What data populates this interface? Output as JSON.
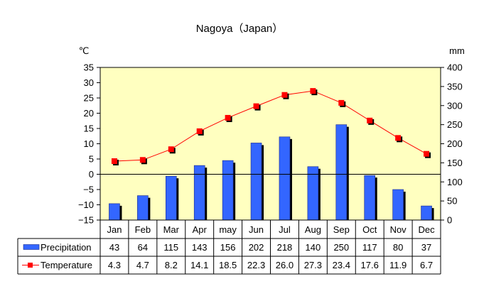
{
  "chart_data": {
    "type": "bar+line",
    "title": "Nagoya（Japan）",
    "categories": [
      "Jan",
      "Feb",
      "Mar",
      "Apr",
      "may",
      "Jun",
      "Jul",
      "Aug",
      "Sep",
      "Oct",
      "Nov",
      "Dec"
    ],
    "left_axis": {
      "unit": "℃",
      "ticks": [
        "35",
        "30",
        "25",
        "20",
        "15",
        "10",
        "5",
        "0",
        "−5",
        "−10",
        "−15"
      ],
      "ylim": [
        -15,
        35
      ]
    },
    "right_axis": {
      "unit": "mm",
      "ticks": [
        "400",
        "350",
        "300",
        "250",
        "200",
        "150",
        "100",
        "50",
        "0"
      ],
      "ylim": [
        0,
        400
      ]
    },
    "grid": false,
    "plot_background": "#ffffc0",
    "series": [
      {
        "name": "Precipitation",
        "kind": "bar",
        "axis": "right",
        "color": "#3366ff",
        "values": [
          43,
          64,
          115,
          143,
          156,
          202,
          218,
          140,
          250,
          117,
          80,
          37
        ],
        "labels": [
          "43",
          "64",
          "115",
          "143",
          "156",
          "202",
          "218",
          "140",
          "250",
          "117",
          "80",
          "37"
        ]
      },
      {
        "name": "Temperature",
        "kind": "line",
        "axis": "left",
        "color": "#ff0000",
        "values": [
          4.3,
          4.7,
          8.2,
          14.1,
          18.5,
          22.3,
          26.0,
          27.3,
          23.4,
          17.6,
          11.9,
          6.7
        ],
        "labels": [
          "4.3",
          "4.7",
          "8.2",
          "14.1",
          "18.5",
          "22.3",
          "26.0",
          "27.3",
          "23.4",
          "17.6",
          "11.9",
          "6.7"
        ]
      }
    ]
  }
}
